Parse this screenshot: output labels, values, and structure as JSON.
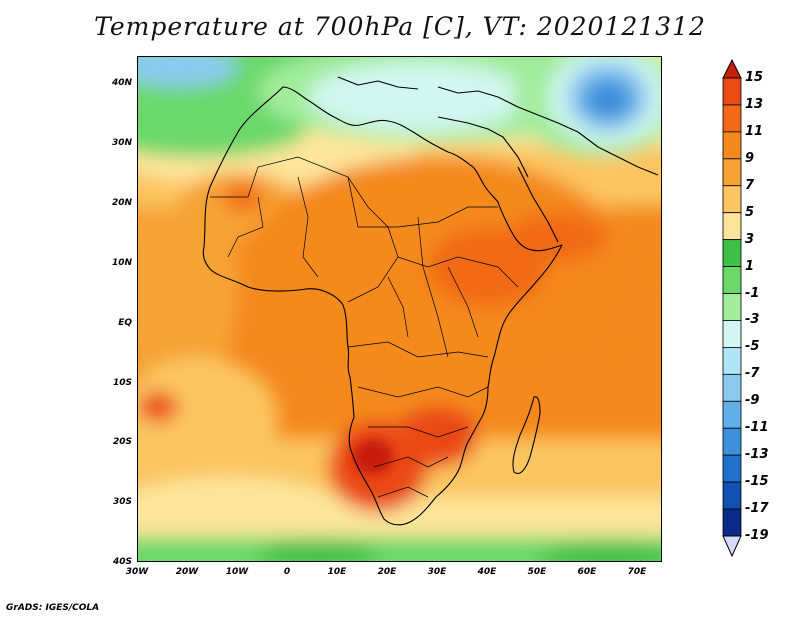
{
  "title": "Temperature at 700hPa [C], VT: 2020121312",
  "credit": "GrADS: IGES/COLA",
  "map": {
    "lon_labels": [
      "30W",
      "20W",
      "10W",
      "0",
      "10E",
      "20E",
      "30E",
      "40E",
      "50E",
      "60E",
      "70E"
    ],
    "lat_labels": [
      "40N",
      "30N",
      "20N",
      "10N",
      "EQ",
      "10S",
      "20S",
      "30S",
      "40S"
    ]
  },
  "colorbar": {
    "labels": [
      "15",
      "13",
      "11",
      "9",
      "7",
      "5",
      "3",
      "1",
      "-1",
      "-3",
      "-5",
      "-7",
      "-9",
      "-11",
      "-13",
      "-15",
      "-17",
      "-19"
    ],
    "colors": [
      "#c81e0c",
      "#ea4a14",
      "#f26a18",
      "#f4891e",
      "#f6a334",
      "#fbc560",
      "#fce59a",
      "#3fc048",
      "#6bd86a",
      "#a2ec9c",
      "#d2f6f0",
      "#b0e4f6",
      "#8ccaf0",
      "#62aee6",
      "#3c90dc",
      "#2070cc",
      "#1250b4",
      "#0a2a8a",
      "#d8dcfc"
    ]
  }
}
